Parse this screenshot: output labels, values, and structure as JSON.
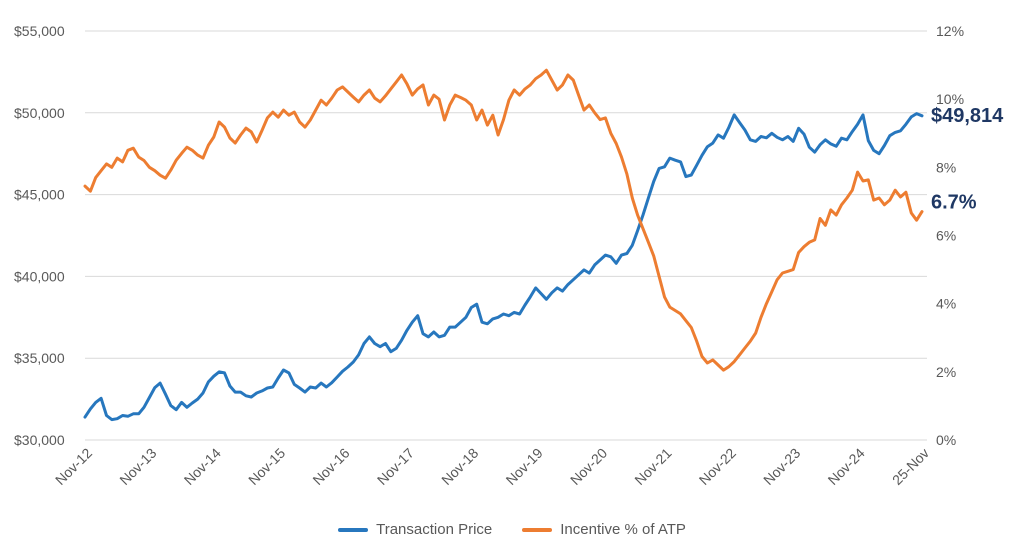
{
  "chart_data": {
    "type": "line",
    "title": "",
    "n_points": 157,
    "x_unit": "month",
    "x_tick_labels": [
      "Nov-12",
      "Nov-13",
      "Nov-14",
      "Nov-15",
      "Nov-16",
      "Nov-17",
      "Nov-18",
      "Nov-19",
      "Nov-20",
      "Nov-21",
      "Nov-22",
      "Nov-23",
      "Nov-24",
      "25-Nov"
    ],
    "x_tick_indices": [
      0,
      12,
      24,
      36,
      48,
      60,
      72,
      84,
      96,
      108,
      120,
      132,
      144,
      156
    ],
    "grid": "horizontal",
    "legend_position": "bottom",
    "left_axis": {
      "min": 30000,
      "max": 55000,
      "step": 5000,
      "tick_labels": [
        "$30,000",
        "$35,000",
        "$40,000",
        "$45,000",
        "$50,000",
        "$55,000"
      ]
    },
    "right_axis": {
      "min": 0,
      "max": 12,
      "step": 2,
      "tick_labels": [
        "0%",
        "2%",
        "4%",
        "6%",
        "8%",
        "10%",
        "12%"
      ]
    },
    "series": [
      {
        "name": "Transaction Price",
        "axis": "left",
        "color": "#2777BE",
        "values": [
          31400,
          31900,
          32300,
          32550,
          31500,
          31250,
          31300,
          31500,
          31450,
          31600,
          31600,
          32000,
          32600,
          33200,
          33480,
          32800,
          32100,
          31850,
          32300,
          32000,
          32260,
          32500,
          32870,
          33550,
          33900,
          34160,
          34100,
          33300,
          32930,
          32930,
          32700,
          32630,
          32870,
          33000,
          33180,
          33240,
          33790,
          34280,
          34100,
          33400,
          33180,
          32930,
          33240,
          33180,
          33480,
          33240,
          33500,
          33850,
          34200,
          34460,
          34770,
          35200,
          35900,
          36300,
          35900,
          35700,
          35900,
          35400,
          35600,
          36100,
          36700,
          37200,
          37600,
          36500,
          36300,
          36600,
          36300,
          36400,
          36900,
          36900,
          37200,
          37500,
          38100,
          38300,
          37200,
          37100,
          37400,
          37500,
          37700,
          37600,
          37800,
          37700,
          38250,
          38750,
          39300,
          38950,
          38600,
          39000,
          39300,
          39100,
          39500,
          39800,
          40100,
          40400,
          40200,
          40700,
          41000,
          41300,
          41200,
          40800,
          41300,
          41400,
          41900,
          42800,
          43750,
          44800,
          45800,
          46600,
          46700,
          47230,
          47100,
          47000,
          46100,
          46200,
          46800,
          47400,
          47930,
          48150,
          48650,
          48450,
          49100,
          49870,
          49400,
          48950,
          48350,
          48250,
          48550,
          48470,
          48750,
          48500,
          48350,
          48550,
          48250,
          49050,
          48700,
          47900,
          47600,
          48050,
          48350,
          48100,
          47950,
          48450,
          48350,
          48850,
          49300,
          49870,
          48300,
          47700,
          47500,
          48000,
          48600,
          48800,
          48900,
          49300,
          49750,
          49950,
          49814
        ]
      },
      {
        "name": "Incentive % of ATP",
        "axis": "right",
        "color": "#ED7D31",
        "values": [
          7.45,
          7.3,
          7.7,
          7.9,
          8.1,
          8.0,
          8.27,
          8.16,
          8.5,
          8.56,
          8.3,
          8.2,
          8.0,
          7.9,
          7.77,
          7.68,
          7.92,
          8.21,
          8.41,
          8.59,
          8.5,
          8.36,
          8.27,
          8.65,
          8.89,
          9.33,
          9.18,
          8.86,
          8.71,
          8.95,
          9.15,
          9.04,
          8.74,
          9.09,
          9.45,
          9.62,
          9.47,
          9.68,
          9.53,
          9.62,
          9.33,
          9.18,
          9.39,
          9.68,
          9.97,
          9.83,
          10.03,
          10.27,
          10.36,
          10.21,
          10.06,
          9.92,
          10.12,
          10.27,
          10.03,
          9.92,
          10.1,
          10.3,
          10.5,
          10.71,
          10.45,
          10.12,
          10.3,
          10.42,
          9.83,
          10.12,
          10.0,
          9.39,
          9.83,
          10.12,
          10.05,
          9.97,
          9.83,
          9.39,
          9.68,
          9.24,
          9.53,
          8.95,
          9.4,
          9.97,
          10.27,
          10.12,
          10.3,
          10.42,
          10.6,
          10.71,
          10.85,
          10.56,
          10.27,
          10.42,
          10.71,
          10.56,
          10.12,
          9.68,
          9.83,
          9.6,
          9.4,
          9.45,
          9.0,
          8.7,
          8.3,
          7.8,
          7.1,
          6.6,
          6.2,
          5.8,
          5.4,
          4.8,
          4.2,
          3.9,
          3.8,
          3.7,
          3.5,
          3.3,
          2.9,
          2.45,
          2.26,
          2.35,
          2.2,
          2.05,
          2.15,
          2.3,
          2.5,
          2.7,
          2.9,
          3.14,
          3.6,
          4.0,
          4.35,
          4.7,
          4.9,
          4.95,
          5.0,
          5.5,
          5.67,
          5.8,
          5.87,
          6.5,
          6.3,
          6.75,
          6.6,
          6.9,
          7.1,
          7.33,
          7.86,
          7.6,
          7.63,
          7.04,
          7.1,
          6.9,
          7.04,
          7.33,
          7.13,
          7.27,
          6.66,
          6.45,
          6.7
        ]
      }
    ],
    "annotations": [
      {
        "text": "$49,814",
        "series": 0,
        "color": "#1F3864"
      },
      {
        "text": "6.7%",
        "series": 1,
        "color": "#1F3864"
      }
    ]
  },
  "legend": {
    "items": [
      {
        "label": "Transaction Price",
        "color": "#2777BE"
      },
      {
        "label": "Incentive % of ATP",
        "color": "#ED7D31"
      }
    ]
  },
  "colors": {
    "grid": "#D9D9D9",
    "axis_text": "#595959",
    "annotation": "#1F3864",
    "background": "#FFFFFF"
  }
}
